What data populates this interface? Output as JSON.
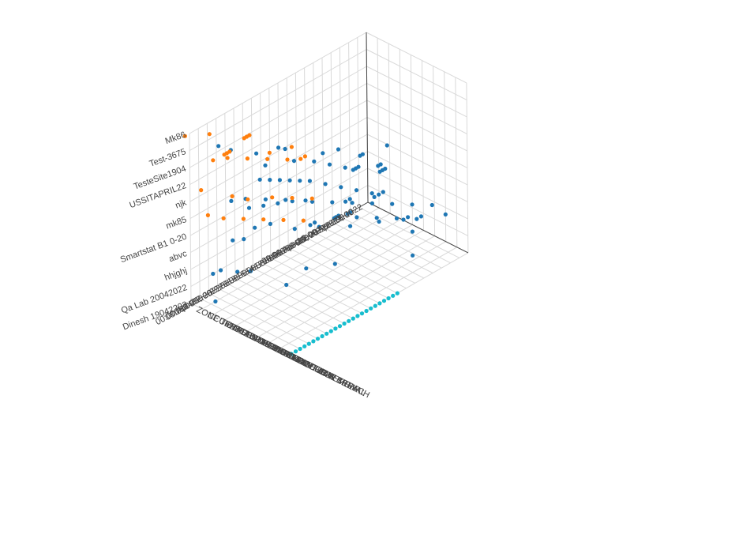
{
  "chart_data": {
    "type": "scatter3d",
    "title": "",
    "axes": {
      "site": {
        "label": "",
        "ticks": [
          "Dinesh 19042203",
          "Qa Lab 20042022",
          "hhjghj",
          "abvc",
          "Smartstat B1 0-20",
          "mk85",
          "njk",
          "USSITAPRIL22",
          "TesteSite1904",
          "Test-3675",
          "Mk86"
        ]
      },
      "time": {
        "label": "",
        "ticks": [
          "16:00 Apr 19, 2022",
          "18:00",
          "20:00",
          "22:00",
          "00:00 Apr 20, 2022",
          "02:00",
          "04:00",
          "06:00",
          "08:00",
          "10:00",
          "12:00",
          "14:00",
          "16:00",
          "18:00",
          "20:00",
          "22:00",
          "00:00 Apr 21, 2022",
          "02:00",
          "04:00",
          "06:00",
          "08:00"
        ]
      },
      "alert": {
        "label": "",
        "ticks": [
          "ZONE TEMPERATURE DEAD",
          "CCU DISCONNECTED",
          "CM DEAD",
          "BATTERY LEVEL LOW FATAL",
          "DEVICE DEAD",
          "BUILDING TEMP LIMIT BREACH",
          "ABNORMAL CUR TEMP",
          "CONSTANT CUR TEMP",
          "DEVICE LOW SIGNAL",
          "DEVICE"
        ]
      }
    },
    "series": [
      {
        "color": "#1f77b4",
        "points": [
          [
            0,
            2,
            0
          ],
          [
            0,
            2.3,
            0
          ],
          [
            0,
            13,
            3
          ],
          [
            0,
            18.5,
            1
          ],
          [
            1,
            2.5,
            6
          ],
          [
            1,
            5,
            8
          ],
          [
            1,
            10,
            5
          ],
          [
            1,
            12,
            4
          ],
          [
            1,
            16,
            1
          ],
          [
            1,
            17.5,
            0
          ],
          [
            2,
            3,
            6
          ],
          [
            2,
            3.5,
            6
          ],
          [
            2,
            5,
            5
          ],
          [
            2,
            7,
            4
          ],
          [
            2,
            8.5,
            2
          ],
          [
            2,
            9,
            2
          ],
          [
            2,
            11,
            0
          ],
          [
            2,
            14,
            0
          ],
          [
            2,
            17,
            3
          ],
          [
            2,
            18.5,
            1.5
          ],
          [
            3,
            2.5,
            9
          ],
          [
            3,
            4,
            8
          ],
          [
            3,
            4.5,
            8
          ],
          [
            3,
            5.5,
            7
          ],
          [
            3,
            6.5,
            6
          ],
          [
            3,
            7.5,
            5
          ],
          [
            3,
            8.3,
            4
          ],
          [
            3,
            8.6,
            4
          ],
          [
            3,
            8.8,
            4
          ],
          [
            3,
            10.5,
            4
          ],
          [
            3,
            12,
            3
          ],
          [
            3,
            14,
            1
          ],
          [
            3,
            16.5,
            1
          ],
          [
            4,
            4,
            9
          ],
          [
            4,
            5,
            8
          ],
          [
            4,
            6,
            7
          ],
          [
            4,
            7,
            6
          ],
          [
            4,
            8,
            5
          ],
          [
            4,
            9,
            4
          ],
          [
            4,
            10,
            3
          ],
          [
            4,
            11,
            2
          ],
          [
            4,
            12,
            1.5
          ],
          [
            4,
            13,
            1
          ],
          [
            4,
            14,
            0.5
          ],
          [
            5,
            7,
            7
          ],
          [
            5,
            7.5,
            7
          ],
          [
            5,
            8,
            7
          ],
          [
            5,
            9.5,
            6
          ],
          [
            5,
            10,
            6
          ],
          [
            5,
            12,
            4
          ],
          [
            5,
            13,
            3
          ],
          [
            5,
            14,
            2
          ],
          [
            5,
            15,
            1
          ],
          [
            5,
            16,
            0.5
          ],
          [
            6,
            6,
            6
          ],
          [
            6,
            6.3,
            6
          ],
          [
            6,
            9.5,
            8
          ],
          [
            6,
            10,
            7
          ],
          [
            6,
            10.5,
            6
          ],
          [
            6,
            11,
            5
          ],
          [
            6,
            11.5,
            4
          ],
          [
            6,
            12,
            3.5
          ],
          [
            6,
            12.5,
            3
          ],
          [
            6,
            13,
            2.5
          ],
          [
            6,
            13.5,
            2
          ],
          [
            6,
            14,
            1.5
          ],
          [
            7,
            8,
            8
          ],
          [
            7,
            8.3,
            8
          ],
          [
            7,
            8.6,
            8
          ],
          [
            7,
            10,
            6
          ],
          [
            7,
            10.5,
            5
          ],
          [
            7,
            11,
            4
          ],
          [
            7,
            12,
            3
          ],
          [
            7,
            14,
            2
          ],
          [
            8,
            11,
            8
          ],
          [
            8,
            11.3,
            8
          ],
          [
            8,
            11.6,
            8
          ],
          [
            8,
            13,
            3
          ],
          [
            8,
            15,
            2
          ],
          [
            8,
            16,
            0.5
          ],
          [
            9,
            9,
            9
          ],
          [
            9,
            12,
            7
          ],
          [
            9,
            15,
            4
          ],
          [
            9,
            18,
            1
          ],
          [
            10,
            13,
            10
          ],
          [
            10,
            13.3,
            10
          ],
          [
            10,
            15,
            8
          ]
        ]
      },
      {
        "color": "#ff7f0e",
        "points": [
          [
            6,
            16,
            7
          ],
          [
            6,
            17,
            6
          ],
          [
            6,
            18,
            5
          ],
          [
            6,
            19,
            4
          ],
          [
            6,
            20,
            3
          ],
          [
            6,
            20.5,
            2
          ],
          [
            7,
            15,
            7
          ],
          [
            7,
            16,
            6
          ],
          [
            7,
            17,
            5
          ],
          [
            7,
            18.5,
            4
          ],
          [
            7,
            19,
            3
          ],
          [
            7,
            20,
            1
          ],
          [
            8,
            14,
            4
          ],
          [
            8,
            15,
            3
          ],
          [
            8,
            16,
            2
          ],
          [
            8,
            17,
            1
          ],
          [
            8,
            18,
            0.5
          ],
          [
            9,
            14.5,
            6
          ],
          [
            9,
            15,
            6
          ],
          [
            9,
            16,
            4
          ],
          [
            9,
            18,
            2
          ],
          [
            9,
            18.3,
            2
          ],
          [
            9,
            18.6,
            2
          ],
          [
            10,
            17,
            3
          ],
          [
            10,
            17.3,
            3
          ],
          [
            10,
            17.6,
            3
          ],
          [
            10,
            19,
            1
          ],
          [
            10,
            20.5,
            0
          ],
          [
            10,
            16,
            6
          ]
        ]
      },
      {
        "color": "#17becf",
        "points": [
          [
            0,
            8,
            9
          ],
          [
            0,
            8.5,
            9
          ],
          [
            0,
            9,
            9
          ],
          [
            0,
            9.5,
            9
          ],
          [
            0,
            10,
            9
          ],
          [
            0,
            10.5,
            9
          ],
          [
            0,
            11,
            9
          ],
          [
            0,
            11.5,
            9
          ],
          [
            0,
            12,
            9
          ],
          [
            0,
            12.5,
            9
          ],
          [
            0,
            13,
            9
          ],
          [
            0,
            13.5,
            9
          ],
          [
            0,
            14,
            9
          ],
          [
            0,
            14.5,
            9
          ],
          [
            0,
            15,
            9
          ],
          [
            0,
            15.5,
            9
          ],
          [
            0,
            16,
            9
          ],
          [
            0,
            16.5,
            9
          ],
          [
            0,
            17,
            9
          ],
          [
            0,
            17.5,
            9
          ],
          [
            0,
            18,
            9
          ],
          [
            0,
            18.5,
            9
          ],
          [
            0,
            19,
            9
          ],
          [
            0,
            19.5,
            9
          ],
          [
            0,
            20,
            9
          ]
        ]
      }
    ],
    "grid": true,
    "legend": "none"
  }
}
